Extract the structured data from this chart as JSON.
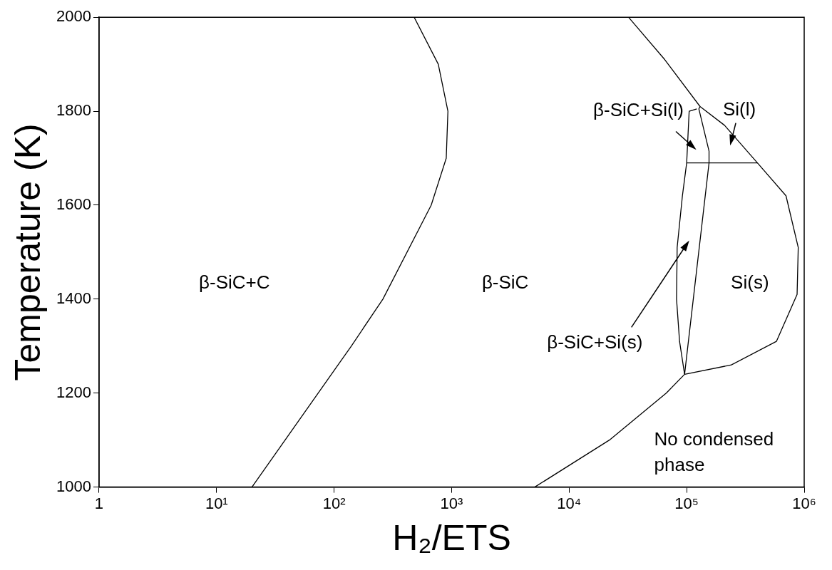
{
  "chart_data": {
    "type": "line",
    "xlabel": "H₂/ETS",
    "ylabel": "Temperature (K)",
    "log": "x",
    "grid": false,
    "legend": false,
    "marker": "none",
    "line_style": "solid",
    "xlim": [
      1,
      1000000
    ],
    "ylim": [
      1000,
      2000
    ],
    "xticks": [
      1,
      {
        "value": 10,
        "label": "10¹"
      },
      {
        "value": 100,
        "label": "10²"
      },
      {
        "value": 1000,
        "label": "10³"
      },
      {
        "value": 10000,
        "label": "10⁴"
      },
      {
        "value": 100000,
        "label": "10⁵"
      },
      {
        "value": 1000000,
        "label": "10⁶"
      }
    ],
    "yticks": [
      1000,
      1200,
      1400,
      1600,
      1800,
      2000
    ],
    "series": [
      {
        "color": "#000000",
        "x": [
          20,
          140,
          260,
          670,
          900,
          930,
          770,
          480
        ],
        "values": [
          1000,
          1300,
          1400,
          1600,
          1700,
          1800,
          1900,
          2000
        ]
      },
      {
        "color": "#000000",
        "x": [
          32000,
          65000,
          130000,
          210000,
          400000,
          700000,
          890000,
          870000,
          580000,
          240000,
          96000
        ],
        "values": [
          2000,
          1910,
          1810,
          1770,
          1690,
          1620,
          1510,
          1410,
          1310,
          1260,
          1240
        ]
      },
      {
        "color": "#000000",
        "x": [
          5100,
          22000,
          67000,
          96000
        ],
        "values": [
          1000,
          1100,
          1200,
          1240
        ]
      },
      {
        "color": "#000000",
        "x": [
          96000,
          155000,
          155000,
          127000,
          130000
        ],
        "values": [
          1240,
          1690,
          1715,
          1805,
          1810
        ]
      },
      {
        "color": "#000000",
        "x": [
          96000,
          87000,
          82000,
          83000,
          92000,
          100000,
          105000,
          122000
        ],
        "values": [
          1240,
          1310,
          1400,
          1510,
          1620,
          1690,
          1800,
          1805
        ]
      },
      {
        "color": "#000000",
        "x": [
          100000,
          400000
        ],
        "values": [
          1690,
          1690
        ]
      }
    ],
    "annotations": [
      "β-SiC+C",
      "β-SiC",
      "β-SiC+Si(l)",
      "Si(l)",
      "Si(s)",
      "β-SiC+Si(s)",
      "No condensed\nphase"
    ]
  }
}
